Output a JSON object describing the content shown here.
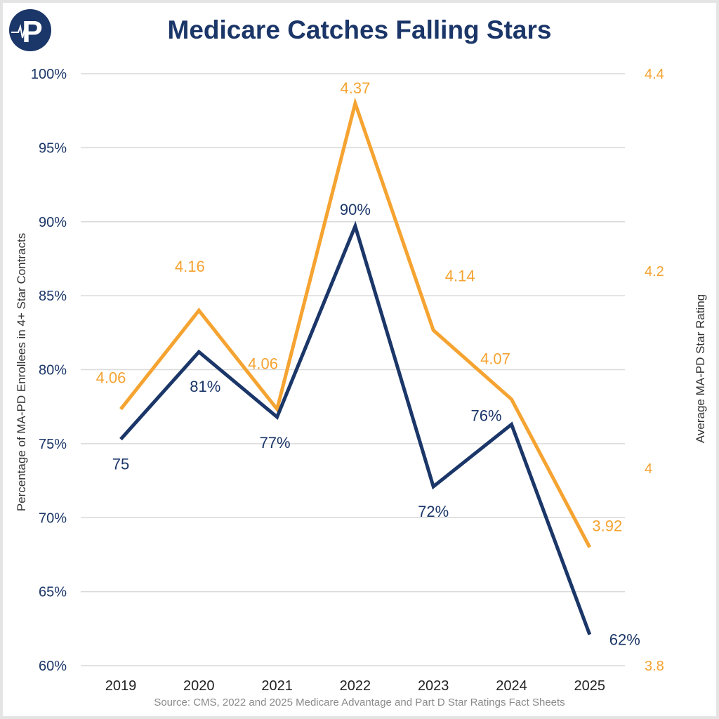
{
  "title": "Medicare Catches Falling Stars",
  "source": "Source: CMS, 2022 and 2025 Medicare Advantage and Part D Star Ratings Fact Sheets",
  "logo_text": "P",
  "chart_data": {
    "type": "line",
    "title": "Medicare Catches Falling Stars",
    "categories": [
      "2019",
      "2020",
      "2021",
      "2022",
      "2023",
      "2024",
      "2025"
    ],
    "y_left": {
      "label": "Percentage of MA-PD Enrollees in 4+ Star Contracts",
      "range": [
        60,
        100
      ],
      "ticks": [
        60,
        65,
        70,
        75,
        80,
        85,
        90,
        95,
        100
      ],
      "tick_labels": [
        "60%",
        "65%",
        "70%",
        "75%",
        "80%",
        "85%",
        "90%",
        "95%",
        "100%"
      ]
    },
    "y_right": {
      "label": "Average MA-PD Star Rating",
      "range": [
        3.8,
        4.4
      ],
      "ticks": [
        3.8,
        4,
        4.2,
        4.4
      ],
      "tick_labels": [
        "3.8",
        "4",
        "4.2",
        "4.4"
      ]
    },
    "grid": true,
    "series": [
      {
        "axis": "left",
        "color": "#1b3668",
        "values": [
          75.3,
          81.2,
          76.8,
          89.7,
          72.1,
          76.3,
          62.1
        ],
        "labels": [
          "75",
          "81%",
          "77%",
          "90%",
          "72%",
          "76%",
          "62%"
        ]
      },
      {
        "axis": "right",
        "color": "#f5a331",
        "values": [
          4.06,
          4.16,
          4.06,
          4.37,
          4.14,
          4.07,
          3.92
        ],
        "labels": [
          "4.06",
          "4.16",
          "4.06",
          "4.37",
          "4.14",
          "4.07",
          "3.92"
        ]
      }
    ]
  },
  "colors": {
    "navy": "#1b3668",
    "orange": "#f5a331",
    "grid": "#d9d9d9"
  }
}
